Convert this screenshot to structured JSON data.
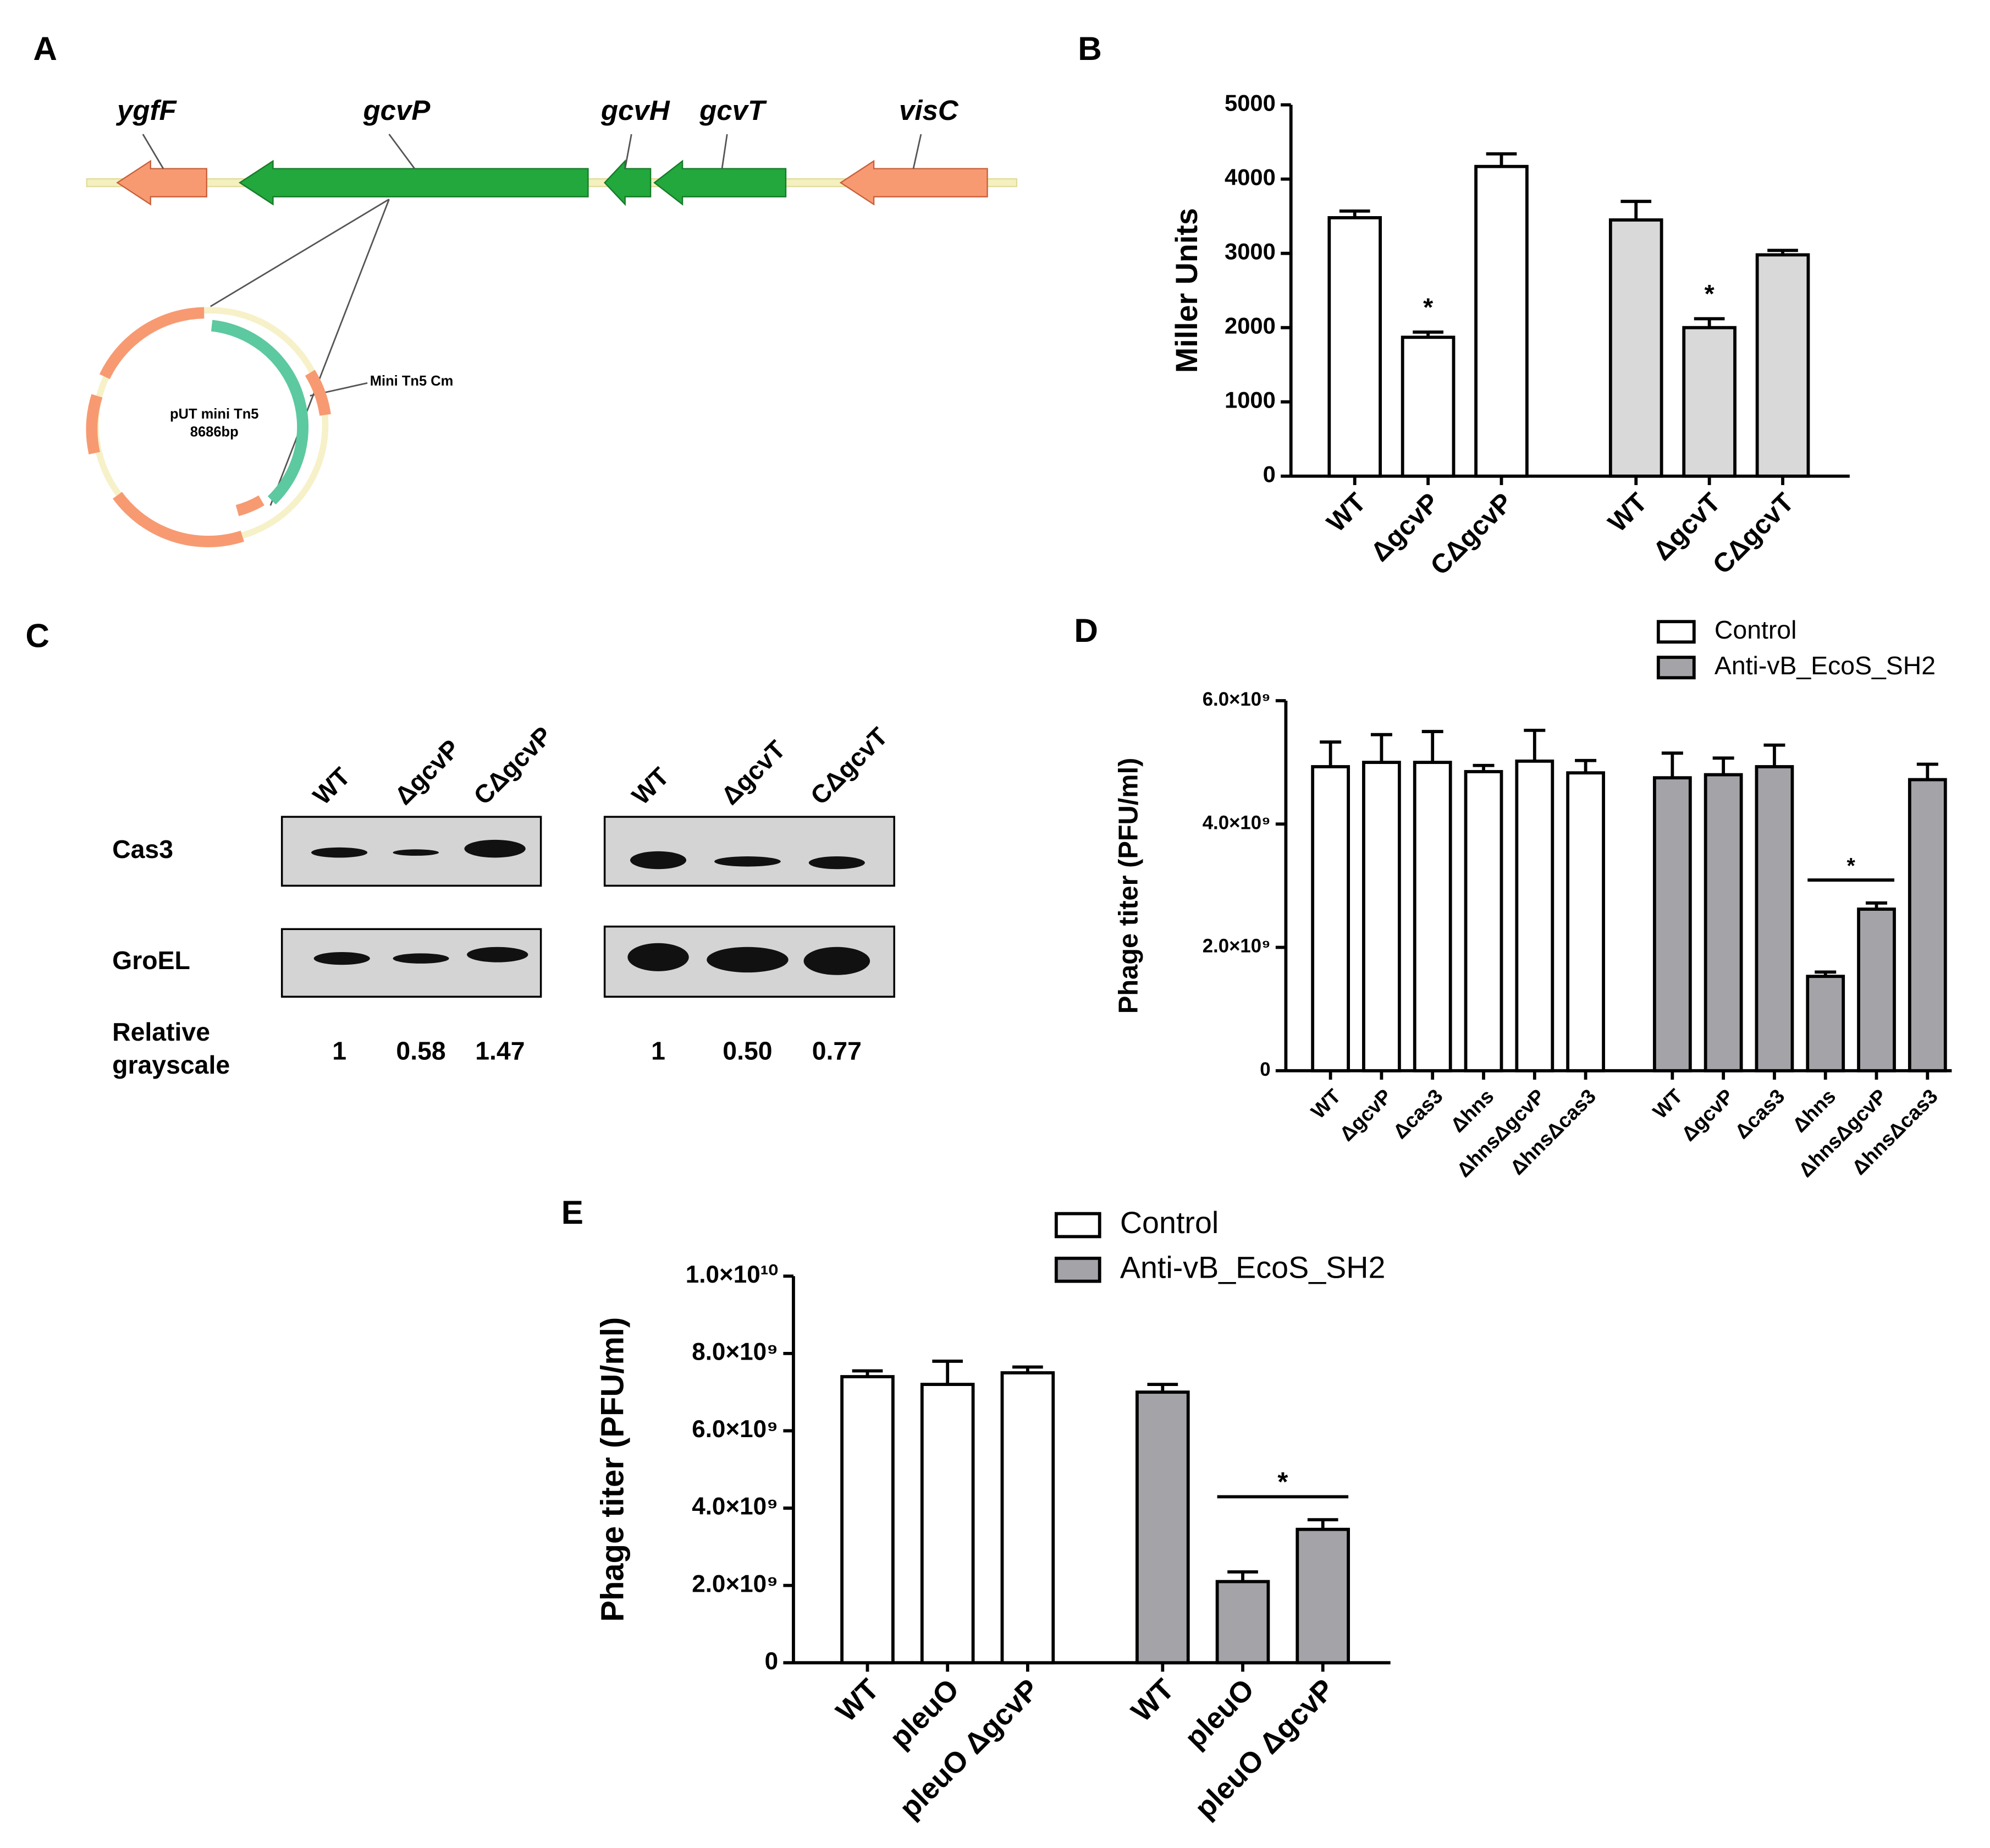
{
  "panel_labels": [
    "A",
    "B",
    "C",
    "D",
    "E"
  ],
  "gene_map": {
    "genes": [
      "ygfF",
      "gcvP",
      "gcvH",
      "gcvT",
      "visC"
    ],
    "plasmid_name": "pUT mini Tn5",
    "plasmid_size": "8686bp",
    "insert_label": "Mini Tn5 Cm"
  },
  "western": {
    "row_labels": [
      "Cas3",
      "GroEL"
    ],
    "value_row_label": [
      "Relative",
      "grayscale"
    ],
    "groups": [
      {
        "lanes": [
          "WT",
          "ΔgcvP",
          "CΔgcvP"
        ],
        "values": [
          "1",
          "0.58",
          "1.47"
        ]
      },
      {
        "lanes": [
          "WT",
          "ΔgcvT",
          "CΔgcvT"
        ],
        "values": [
          "1",
          "0.50",
          "0.77"
        ]
      }
    ]
  },
  "chart_data": [
    {
      "type": "bar",
      "y_label": "Miller Units",
      "ylim": [
        0,
        5000
      ],
      "yticks": [
        0,
        1000,
        2000,
        3000,
        4000,
        5000
      ],
      "series": [
        {
          "color": "#ffffff",
          "categories": [
            "WT",
            "ΔgcvP",
            "CΔgcvP"
          ],
          "values": [
            3480,
            1870,
            4170
          ],
          "errors": [
            90,
            70,
            170
          ],
          "annotations": [
            {
              "text": "*",
              "span": [
                "ΔgcvP"
              ]
            }
          ]
        },
        {
          "color": "#d9d9d9",
          "categories": [
            "WT",
            "ΔgcvT",
            "CΔgcvT"
          ],
          "values": [
            3450,
            2000,
            2980
          ],
          "errors": [
            250,
            120,
            60
          ],
          "annotations": [
            {
              "text": "*",
              "span": [
                "ΔgcvT"
              ]
            }
          ]
        }
      ]
    },
    {
      "type": "bar",
      "y_label": "Phage titer (PFU/ml)",
      "ylim": [
        0,
        6000000000
      ],
      "yticks": [
        0,
        {
          "value": 2000000000,
          "label": "2.0×10⁹"
        },
        {
          "value": 4000000000,
          "label": "4.0×10⁹"
        },
        {
          "value": 6000000000,
          "label": "6.0×10⁹"
        }
      ],
      "legend": "upper right",
      "series": [
        {
          "name": "Control",
          "color": "#ffffff",
          "categories": [
            "WT",
            "ΔgcvP",
            "Δcas3",
            "Δhns",
            "ΔhnsΔgcvP",
            "ΔhnsΔcas3"
          ],
          "values": [
            4930000000,
            5000000000,
            5000000000,
            4850000000,
            5020000000,
            4830000000
          ],
          "errors": [
            400000000,
            450000000,
            500000000,
            100000000,
            500000000,
            200000000
          ]
        },
        {
          "name": "Anti-vB_EcoS_SH2",
          "color": "#a3a3a8",
          "categories": [
            "WT",
            "ΔgcvP",
            "Δcas3",
            "Δhns",
            "ΔhnsΔgcvP",
            "ΔhnsΔcas3"
          ],
          "values": [
            4750000000,
            4800000000,
            4930000000,
            1530000000,
            2620000000,
            4720000000
          ],
          "errors": [
            400000000,
            270000000,
            350000000,
            70000000,
            100000000,
            250000000
          ],
          "annotations": [
            {
              "text": "*",
              "span": [
                "Δhns",
                "ΔhnsΔgcvP"
              ]
            }
          ]
        }
      ]
    },
    {
      "type": "bar",
      "y_label": "Phage titer (PFU/ml)",
      "ylim": [
        0,
        10000000000
      ],
      "yticks": [
        0,
        {
          "value": 2000000000,
          "label": "2.0×10⁹"
        },
        {
          "value": 4000000000,
          "label": "4.0×10⁹"
        },
        {
          "value": 6000000000,
          "label": "6.0×10⁹"
        },
        {
          "value": 8000000000,
          "label": "8.0×10⁹"
        },
        {
          "value": 10000000000,
          "label": "1.0×10¹⁰"
        }
      ],
      "legend": "upper right",
      "series": [
        {
          "name": "Control",
          "color": "#ffffff",
          "categories": [
            "WT",
            "pleuO",
            "pleuO ΔgcvP"
          ],
          "values": [
            7400000000,
            7200000000,
            7500000000
          ],
          "errors": [
            150000000,
            600000000,
            150000000
          ]
        },
        {
          "name": "Anti-vB_EcoS_SH2",
          "color": "#a3a3a8",
          "categories": [
            "WT",
            "pleuO",
            "pleuO ΔgcvP"
          ],
          "values": [
            7000000000,
            2100000000,
            3450000000
          ],
          "errors": [
            200000000,
            250000000,
            250000000
          ],
          "annotations": [
            {
              "text": "*",
              "span": [
                "pleuO",
                "pleuO ΔgcvP"
              ]
            }
          ]
        }
      ]
    }
  ]
}
